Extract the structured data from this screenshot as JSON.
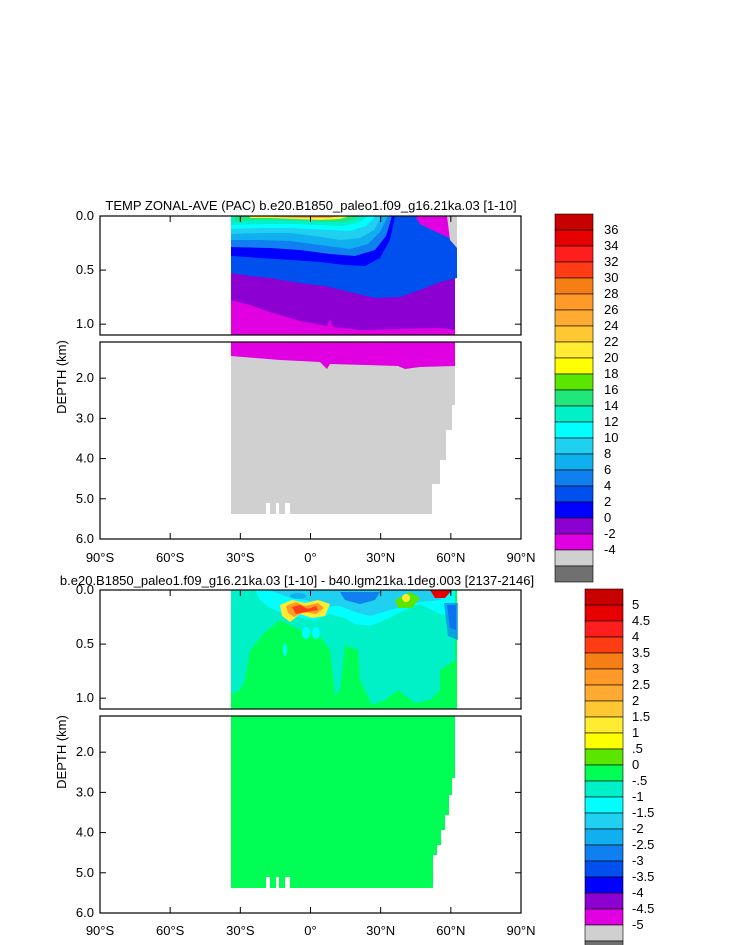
{
  "chart_data": [
    {
      "type": "contour",
      "title": "TEMP ZONAL-AVE (PAC) b.e20.B1850_paleo1.f09_g16.21ka.03 [1-10]",
      "ylabel": "DEPTH (km)",
      "xlabel": "",
      "xlim": [
        -90,
        90
      ],
      "x_ticks": [
        {
          "value": -90,
          "label": "90°S"
        },
        {
          "value": -60,
          "label": "60°S"
        },
        {
          "value": -30,
          "label": "30°S"
        },
        {
          "value": 0,
          "label": "0°"
        },
        {
          "value": 30,
          "label": "30°N"
        },
        {
          "value": 60,
          "label": "60°N"
        },
        {
          "value": 90,
          "label": "90°N"
        }
      ],
      "upper_panel": {
        "ylim": [
          0.0,
          1.1
        ],
        "y_ticks": [
          "0.0",
          "0.5",
          "1.0"
        ],
        "y_values": [
          0.0,
          0.5,
          1.0
        ]
      },
      "lower_panel": {
        "ylim": [
          1.1,
          6.0
        ],
        "y_ticks": [
          "2.0",
          "3.0",
          "4.0",
          "5.0",
          "6.0"
        ],
        "y_values": [
          2.0,
          3.0,
          4.0,
          5.0,
          6.0
        ]
      },
      "ocean_extent": {
        "lat_min": -34,
        "lat_max": 61
      },
      "colorbar": {
        "levels": [
          "36",
          "34",
          "32",
          "30",
          "28",
          "26",
          "24",
          "22",
          "20",
          "18",
          "16",
          "14",
          "12",
          "10",
          "8",
          "6",
          "4",
          "2",
          "0",
          "-2",
          "-4"
        ],
        "colors": [
          "#c80000",
          "#e60000",
          "#ff1e1e",
          "#ff3c14",
          "#f57f14",
          "#ff9a28",
          "#ffaa32",
          "#ffc832",
          "#ffeb32",
          "#ffff00",
          "#5ae600",
          "#21e67a",
          "#00f0c8",
          "#00ffff",
          "#20d0f0",
          "#10b0f0",
          "#1080f0",
          "#0050f0",
          "#0000ff",
          "#8c00d2",
          "#e100e1",
          "#d0d0d0",
          "#707070"
        ]
      }
    },
    {
      "type": "contour",
      "title": "b.e20.B1850_paleo1.f09_g16.21ka.03 [1-10] - b40.lgm21ka.1deg.003 [2137-2146]",
      "ylabel": "DEPTH (km)",
      "xlabel": "",
      "xlim": [
        -90,
        90
      ],
      "x_ticks": [
        {
          "value": -90,
          "label": "90°S"
        },
        {
          "value": -60,
          "label": "60°S"
        },
        {
          "value": -30,
          "label": "30°S"
        },
        {
          "value": 0,
          "label": "0°"
        },
        {
          "value": 30,
          "label": "30°N"
        },
        {
          "value": 60,
          "label": "60°N"
        },
        {
          "value": 90,
          "label": "90°N"
        }
      ],
      "upper_panel": {
        "ylim": [
          0.0,
          1.1
        ],
        "y_ticks": [
          "0.0",
          "0.5",
          "1.0"
        ],
        "y_values": [
          0.0,
          0.5,
          1.0
        ]
      },
      "lower_panel": {
        "ylim": [
          1.1,
          6.0
        ],
        "y_ticks": [
          "2.0",
          "3.0",
          "4.0",
          "5.0",
          "6.0"
        ],
        "y_values": [
          2.0,
          3.0,
          4.0,
          5.0,
          6.0
        ]
      },
      "ocean_extent": {
        "lat_min": -34,
        "lat_max": 61
      },
      "colorbar": {
        "levels": [
          "5",
          "4.5",
          "4",
          "3.5",
          "3",
          "2.5",
          "2",
          "1.5",
          "1",
          ".5",
          "0",
          "-.5",
          "-1",
          "-1.5",
          "-2",
          "-2.5",
          "-3",
          "-3.5",
          "-4",
          "-4.5",
          "-5"
        ],
        "colors": [
          "#c80000",
          "#e60000",
          "#ff1e1e",
          "#ff3c14",
          "#f57f14",
          "#ff9a28",
          "#ffaa32",
          "#ffc832",
          "#ffeb32",
          "#ffff00",
          "#5ae600",
          "#00ff55",
          "#00f0c8",
          "#00ffff",
          "#20d0f0",
          "#10b0f0",
          "#1080f0",
          "#0050f0",
          "#0000ff",
          "#8c00d2",
          "#e100e1",
          "#d0d0d0",
          "#707070"
        ]
      }
    }
  ]
}
